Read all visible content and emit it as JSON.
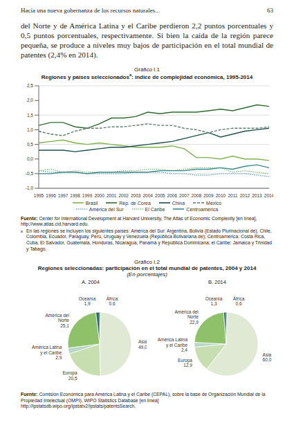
{
  "header": {
    "title": "Hacia una nueva gobernanza de los recursos naturales...",
    "page": "63"
  },
  "paragraph": "del Norte y de América Latina y el Caribe perdieron 2,2 puntos porcentuales y 0,5 puntos porcentuales, respectivamente. Si bien la caída de la región parece pequeña, se produce a niveles muy bajos de participación en el total mundial de patentes (2,4% en 2014).",
  "figure_1": {
    "label": "Gráfico I.1",
    "title": "Regiones y países seleccionados",
    "title_note": "a",
    "title_end": ": índice de complejidad económica, 1995-2014",
    "source_label": "Fuente:",
    "source": "Center for International Development at Harvard University, The Atlas of Economic Complexity [en línea], http://www.atlas.cid.harvard.edu.",
    "note_mark": "a",
    "note": "En las regiones se incluyen los siguientes países: América del Sur: Argentina, Bolivia (Estado Plurinacional de), Chile, Colombia, Ecuador, Paraguay, Perú, Uruguay y Venezuela (República Bolivariana de); Centroamérica: Costa Rica, Cuba, El Salvador, Guatemala, Honduras, Nicaragua, Panamá y República Dominicana; el Caribe: Jamaica y Trinidad y Tabago."
  },
  "figure_2": {
    "label": "Gráfico I.2",
    "title": "Regiones seleccionadas: participación en el total mundial de patentes, 2004 y 2014",
    "subtitle": "(En porcentajes)",
    "source_label": "Fuente:",
    "source": "Comisión Económica para América Latina y el Caribe (CEPAL), sobre la base de Organización Mundial de la Propiedad Intelectual (OMPI), WIPO Statistics Database [en línea] http://ipstatsdb.wipo.org/ipstatv2/ipstats/patentsSearch."
  },
  "chart_data": [
    {
      "type": "line",
      "x": [
        1995,
        1996,
        1997,
        1998,
        1999,
        2000,
        2001,
        2002,
        2003,
        2004,
        2005,
        2006,
        2007,
        2008,
        2009,
        2010,
        2011,
        2012,
        2013,
        2014
      ],
      "ylim": [
        -1,
        2.5
      ],
      "yticks": [
        {
          "value": -1,
          "label": "-1,0"
        },
        {
          "value": -0.5,
          "label": "-0,5"
        },
        {
          "value": 0,
          "label": "0,0"
        },
        {
          "value": 0.5,
          "label": "0,5"
        },
        {
          "value": 1,
          "label": "1,0"
        },
        {
          "value": 1.5,
          "label": "1,5"
        },
        {
          "value": 2,
          "label": "2,0"
        },
        {
          "value": 2.5,
          "label": "2,5"
        }
      ],
      "grid": true,
      "legend": "bottom",
      "series": [
        {
          "name": "Brasil",
          "color": "#7fb24a",
          "line_style": "solid",
          "values": [
            0.55,
            0.6,
            0.65,
            0.55,
            0.5,
            0.55,
            0.5,
            0.45,
            0.4,
            0.4,
            0.4,
            0.45,
            0.35,
            0.05,
            0.05,
            0.0,
            0.1,
            0.0,
            0.0,
            -0.05
          ]
        },
        {
          "name": "Rep. de Corea",
          "color": "#2e6b2e",
          "line_style": "solid",
          "values": [
            1.15,
            1.25,
            1.25,
            1.1,
            1.05,
            1.2,
            1.4,
            1.4,
            1.45,
            1.6,
            1.55,
            1.6,
            1.6,
            1.6,
            1.65,
            1.7,
            1.65,
            1.75,
            1.85,
            1.8
          ]
        },
        {
          "name": "China",
          "color": "#1d4f4f",
          "line_style": "solid",
          "values": [
            0.3,
            0.3,
            0.3,
            0.25,
            0.3,
            0.35,
            0.4,
            0.4,
            0.45,
            0.5,
            0.55,
            0.6,
            0.7,
            0.8,
            0.9,
            0.75,
            0.85,
            0.95,
            1.0,
            1.05
          ]
        },
        {
          "name": "México",
          "color": "#5a7a6a",
          "line_style": "dashed",
          "values": [
            0.95,
            0.85,
            0.8,
            0.95,
            1.05,
            1.05,
            1.1,
            1.1,
            1.15,
            1.2,
            1.15,
            1.15,
            1.05,
            1.0,
            0.9,
            1.0,
            1.05,
            1.05,
            1.05,
            1.1
          ]
        },
        {
          "name": "América del Sur",
          "color": "#6aa8c4",
          "line_style": "dotted",
          "values": [
            -0.4,
            -0.45,
            -0.45,
            -0.45,
            -0.5,
            -0.5,
            -0.5,
            -0.5,
            -0.45,
            -0.45,
            -0.45,
            -0.5,
            -0.5,
            -0.55,
            -0.55,
            -0.5,
            -0.5,
            -0.5,
            -0.55,
            -0.6
          ]
        },
        {
          "name": "El Caribe",
          "color": "#7cbf7c",
          "line_style": "dotted",
          "values": [
            -0.4,
            -0.35,
            -0.45,
            -0.4,
            -0.45,
            -0.45,
            -0.45,
            -0.4,
            -0.4,
            -0.35,
            -0.35,
            -0.4,
            -0.35,
            -0.3,
            -0.3,
            -0.3,
            -0.45,
            -0.4,
            -0.45,
            -0.5
          ]
        },
        {
          "name": "Centroamérica",
          "color": "#3a8a8a",
          "line_style": "solid",
          "values": [
            -0.5,
            -0.5,
            -0.45,
            -0.45,
            -0.5,
            -0.45,
            -0.45,
            -0.45,
            -0.45,
            -0.45,
            -0.4,
            -0.4,
            -0.4,
            -0.35,
            -0.35,
            -0.3,
            -0.35,
            -0.25,
            -0.2,
            -0.3
          ]
        }
      ]
    },
    {
      "type": "pie",
      "title": "A. 2004",
      "data_labels": true,
      "categories": [
        "África",
        "Asia",
        "Europa",
        "América Latina y el Caribe",
        "América del Norte",
        "Oceanía"
      ],
      "values": [
        0.6,
        49.0,
        20.5,
        2.9,
        25.1,
        1.9
      ],
      "value_labels": [
        "0,6",
        "49,0",
        "20,5",
        "2,9",
        "25,1",
        "1,9"
      ],
      "colors": [
        "#1f4a3a",
        "#dfe9d3",
        "#c6deb0",
        "#b8d6c6",
        "#8fc16a",
        "#2f6f6f"
      ]
    },
    {
      "type": "pie",
      "title": "B. 2014",
      "data_labels": true,
      "categories": [
        "África",
        "Asia",
        "Europa",
        "América Latina y el Caribe",
        "América del Norte",
        "Oceanía"
      ],
      "values": [
        0.6,
        60.0,
        12.9,
        2.4,
        22.9,
        1.3
      ],
      "value_labels": [
        "0,6",
        "60,0",
        "12,9",
        "2,4",
        "22,9",
        "1,3"
      ],
      "colors": [
        "#1f4a3a",
        "#dfe9d3",
        "#c6deb0",
        "#b8d6c6",
        "#8fc16a",
        "#2f6f6f"
      ]
    }
  ]
}
